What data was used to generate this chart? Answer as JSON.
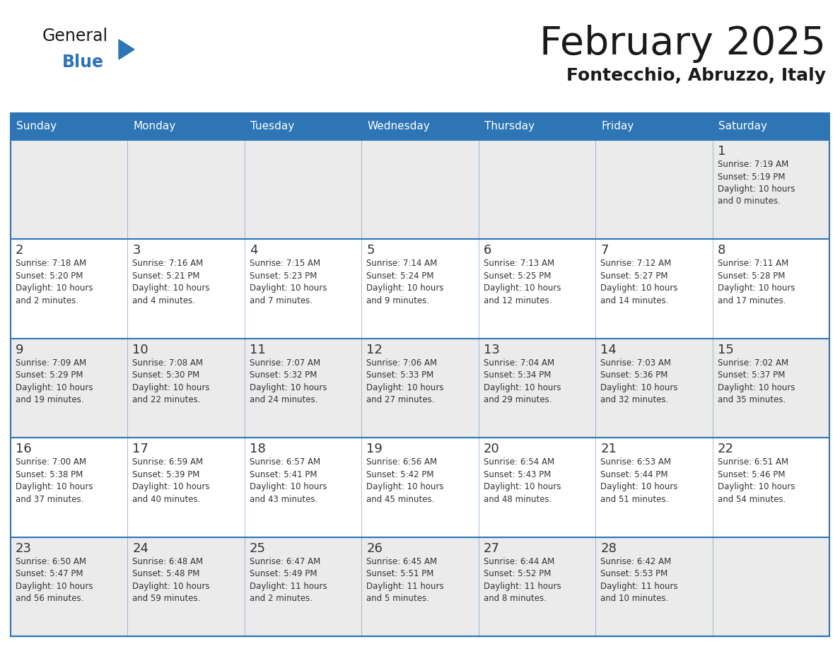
{
  "title": "February 2025",
  "subtitle": "Fontecchio, Abruzzo, Italy",
  "header_color": "#2E75B6",
  "header_text_color": "#FFFFFF",
  "row_bg_odd": "#EBEBEB",
  "row_bg_even": "#FFFFFF",
  "day_number_color": "#333333",
  "text_color": "#333333",
  "border_color": "#2E75B6",
  "days_of_week": [
    "Sunday",
    "Monday",
    "Tuesday",
    "Wednesday",
    "Thursday",
    "Friday",
    "Saturday"
  ],
  "weeks": [
    [
      {
        "day": null,
        "info": null
      },
      {
        "day": null,
        "info": null
      },
      {
        "day": null,
        "info": null
      },
      {
        "day": null,
        "info": null
      },
      {
        "day": null,
        "info": null
      },
      {
        "day": null,
        "info": null
      },
      {
        "day": 1,
        "info": "Sunrise: 7:19 AM\nSunset: 5:19 PM\nDaylight: 10 hours\nand 0 minutes."
      }
    ],
    [
      {
        "day": 2,
        "info": "Sunrise: 7:18 AM\nSunset: 5:20 PM\nDaylight: 10 hours\nand 2 minutes."
      },
      {
        "day": 3,
        "info": "Sunrise: 7:16 AM\nSunset: 5:21 PM\nDaylight: 10 hours\nand 4 minutes."
      },
      {
        "day": 4,
        "info": "Sunrise: 7:15 AM\nSunset: 5:23 PM\nDaylight: 10 hours\nand 7 minutes."
      },
      {
        "day": 5,
        "info": "Sunrise: 7:14 AM\nSunset: 5:24 PM\nDaylight: 10 hours\nand 9 minutes."
      },
      {
        "day": 6,
        "info": "Sunrise: 7:13 AM\nSunset: 5:25 PM\nDaylight: 10 hours\nand 12 minutes."
      },
      {
        "day": 7,
        "info": "Sunrise: 7:12 AM\nSunset: 5:27 PM\nDaylight: 10 hours\nand 14 minutes."
      },
      {
        "day": 8,
        "info": "Sunrise: 7:11 AM\nSunset: 5:28 PM\nDaylight: 10 hours\nand 17 minutes."
      }
    ],
    [
      {
        "day": 9,
        "info": "Sunrise: 7:09 AM\nSunset: 5:29 PM\nDaylight: 10 hours\nand 19 minutes."
      },
      {
        "day": 10,
        "info": "Sunrise: 7:08 AM\nSunset: 5:30 PM\nDaylight: 10 hours\nand 22 minutes."
      },
      {
        "day": 11,
        "info": "Sunrise: 7:07 AM\nSunset: 5:32 PM\nDaylight: 10 hours\nand 24 minutes."
      },
      {
        "day": 12,
        "info": "Sunrise: 7:06 AM\nSunset: 5:33 PM\nDaylight: 10 hours\nand 27 minutes."
      },
      {
        "day": 13,
        "info": "Sunrise: 7:04 AM\nSunset: 5:34 PM\nDaylight: 10 hours\nand 29 minutes."
      },
      {
        "day": 14,
        "info": "Sunrise: 7:03 AM\nSunset: 5:36 PM\nDaylight: 10 hours\nand 32 minutes."
      },
      {
        "day": 15,
        "info": "Sunrise: 7:02 AM\nSunset: 5:37 PM\nDaylight: 10 hours\nand 35 minutes."
      }
    ],
    [
      {
        "day": 16,
        "info": "Sunrise: 7:00 AM\nSunset: 5:38 PM\nDaylight: 10 hours\nand 37 minutes."
      },
      {
        "day": 17,
        "info": "Sunrise: 6:59 AM\nSunset: 5:39 PM\nDaylight: 10 hours\nand 40 minutes."
      },
      {
        "day": 18,
        "info": "Sunrise: 6:57 AM\nSunset: 5:41 PM\nDaylight: 10 hours\nand 43 minutes."
      },
      {
        "day": 19,
        "info": "Sunrise: 6:56 AM\nSunset: 5:42 PM\nDaylight: 10 hours\nand 45 minutes."
      },
      {
        "day": 20,
        "info": "Sunrise: 6:54 AM\nSunset: 5:43 PM\nDaylight: 10 hours\nand 48 minutes."
      },
      {
        "day": 21,
        "info": "Sunrise: 6:53 AM\nSunset: 5:44 PM\nDaylight: 10 hours\nand 51 minutes."
      },
      {
        "day": 22,
        "info": "Sunrise: 6:51 AM\nSunset: 5:46 PM\nDaylight: 10 hours\nand 54 minutes."
      }
    ],
    [
      {
        "day": 23,
        "info": "Sunrise: 6:50 AM\nSunset: 5:47 PM\nDaylight: 10 hours\nand 56 minutes."
      },
      {
        "day": 24,
        "info": "Sunrise: 6:48 AM\nSunset: 5:48 PM\nDaylight: 10 hours\nand 59 minutes."
      },
      {
        "day": 25,
        "info": "Sunrise: 6:47 AM\nSunset: 5:49 PM\nDaylight: 11 hours\nand 2 minutes."
      },
      {
        "day": 26,
        "info": "Sunrise: 6:45 AM\nSunset: 5:51 PM\nDaylight: 11 hours\nand 5 minutes."
      },
      {
        "day": 27,
        "info": "Sunrise: 6:44 AM\nSunset: 5:52 PM\nDaylight: 11 hours\nand 8 minutes."
      },
      {
        "day": 28,
        "info": "Sunrise: 6:42 AM\nSunset: 5:53 PM\nDaylight: 11 hours\nand 10 minutes."
      },
      {
        "day": null,
        "info": null
      }
    ]
  ],
  "logo_general_color": "#1a1a1a",
  "logo_blue_color": "#2E75B6",
  "logo_triangle_color": "#2E75B6",
  "title_color": "#1a1a1a",
  "subtitle_color": "#1a1a1a"
}
